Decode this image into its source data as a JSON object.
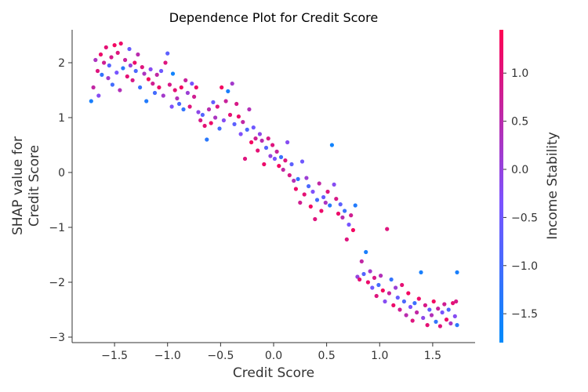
{
  "chart_data": {
    "type": "scatter",
    "title": "Dependence Plot for Credit Score",
    "xlabel": "Credit Score",
    "ylabel_lines": [
      "SHAP value for",
      "Credit Score"
    ],
    "xlim": [
      -1.9,
      1.9
    ],
    "ylim": [
      -3.1,
      2.6
    ],
    "xticks": [
      -1.5,
      -1.0,
      -0.5,
      0.0,
      0.5,
      1.0,
      1.5
    ],
    "xtick_labels": [
      "−1.5",
      "−1.0",
      "−0.5",
      "0.0",
      "0.5",
      "1.0",
      "1.5"
    ],
    "yticks": [
      2,
      1,
      0,
      -1,
      -2,
      -3
    ],
    "ytick_labels": [
      "2",
      "1",
      "0",
      "−1",
      "−2",
      "−3"
    ],
    "grid": false,
    "colorbar": {
      "label": "Income Stability",
      "range": [
        -1.8,
        1.45
      ],
      "ticks": [
        1.0,
        0.5,
        0.0,
        -0.5,
        -1.0,
        -1.5
      ],
      "tick_labels": [
        "1.0",
        "0.5",
        "0.0",
        "−0.5",
        "−1.0",
        "−1.5"
      ],
      "colors": [
        "#008bfb",
        "#7c52ff",
        "#ff0052"
      ]
    },
    "series": [
      {
        "points": [
          [
            -1.72,
            1.3,
            -1.5
          ],
          [
            -1.7,
            1.55,
            0.6
          ],
          [
            -1.68,
            2.05,
            0.3
          ],
          [
            -1.66,
            1.85,
            1.0
          ],
          [
            -1.65,
            1.4,
            -0.2
          ],
          [
            -1.63,
            2.15,
            1.2
          ],
          [
            -1.62,
            1.78,
            -1.2
          ],
          [
            -1.6,
            2.0,
            0.8
          ],
          [
            -1.58,
            2.28,
            1.1
          ],
          [
            -1.56,
            1.72,
            0.2
          ],
          [
            -1.55,
            1.95,
            -0.8
          ],
          [
            -1.53,
            2.1,
            0.9
          ],
          [
            -1.52,
            1.6,
            -1.0
          ],
          [
            -1.5,
            2.32,
            1.3
          ],
          [
            -1.48,
            1.82,
            -0.4
          ],
          [
            -1.47,
            2.18,
            1.0
          ],
          [
            -1.45,
            1.5,
            0.4
          ],
          [
            -1.44,
            2.35,
            1.2
          ],
          [
            -1.42,
            1.9,
            -1.3
          ],
          [
            -1.4,
            2.05,
            0.7
          ],
          [
            -1.38,
            1.75,
            1.1
          ],
          [
            -1.36,
            2.25,
            -0.6
          ],
          [
            -1.35,
            1.95,
            0.0
          ],
          [
            -1.33,
            1.68,
            0.9
          ],
          [
            -1.31,
            2.0,
            1.2
          ],
          [
            -1.3,
            1.85,
            -0.9
          ],
          [
            -1.28,
            2.15,
            0.5
          ],
          [
            -1.26,
            1.55,
            -1.1
          ],
          [
            -1.24,
            1.92,
            1.0
          ],
          [
            -1.22,
            1.8,
            0.3
          ],
          [
            -1.2,
            1.3,
            -1.4
          ],
          [
            -1.18,
            1.7,
            1.3
          ],
          [
            -1.16,
            1.88,
            -0.2
          ],
          [
            -1.14,
            1.62,
            0.8
          ],
          [
            -1.12,
            1.45,
            -1.0
          ],
          [
            -1.1,
            1.78,
            0.6
          ],
          [
            -1.08,
            1.55,
            1.2
          ],
          [
            -1.06,
            1.85,
            -0.5
          ],
          [
            -1.04,
            1.4,
            0.2
          ],
          [
            -1.02,
            2.0,
            1.0
          ],
          [
            -1.0,
            2.17,
            -0.7
          ],
          [
            -0.98,
            1.6,
            0.9
          ],
          [
            -0.96,
            1.2,
            -0.3
          ],
          [
            -0.95,
            1.8,
            -1.6
          ],
          [
            -0.93,
            1.5,
            1.1
          ],
          [
            -0.91,
            1.35,
            0.4
          ],
          [
            -0.89,
            1.25,
            -0.9
          ],
          [
            -0.87,
            1.55,
            1.3
          ],
          [
            -0.85,
            1.15,
            -1.2
          ],
          [
            -0.83,
            1.68,
            0.7
          ],
          [
            -0.81,
            1.45,
            0.1
          ],
          [
            -0.79,
            1.2,
            1.0
          ],
          [
            -0.77,
            1.62,
            -0.4
          ],
          [
            -0.75,
            1.38,
            0.8
          ],
          [
            -0.73,
            1.55,
            1.2
          ],
          [
            -0.71,
            1.1,
            -0.1
          ],
          [
            -0.69,
            0.95,
            0.9
          ],
          [
            -0.67,
            1.05,
            -0.8
          ],
          [
            -0.65,
            0.85,
            1.1
          ],
          [
            -0.63,
            0.6,
            -1.3
          ],
          [
            -0.61,
            1.15,
            0.5
          ],
          [
            -0.59,
            0.9,
            1.2
          ],
          [
            -0.57,
            1.28,
            -0.6
          ],
          [
            -0.55,
            1.0,
            0.3
          ],
          [
            -0.53,
            1.2,
            1.0
          ],
          [
            -0.51,
            0.8,
            -1.0
          ],
          [
            -0.49,
            1.55,
            1.3
          ],
          [
            -0.47,
            0.95,
            -0.2
          ],
          [
            -0.45,
            1.3,
            0.7
          ],
          [
            -0.43,
            1.48,
            -1.5
          ],
          [
            -0.41,
            1.05,
            1.1
          ],
          [
            -0.39,
            1.62,
            0.2
          ],
          [
            -0.37,
            0.88,
            -0.7
          ],
          [
            -0.35,
            1.25,
            0.9
          ],
          [
            -0.33,
            1.02,
            1.2
          ],
          [
            -0.31,
            0.7,
            -0.3
          ],
          [
            -0.29,
            0.92,
            0.6
          ],
          [
            -0.27,
            0.25,
            1.0
          ],
          [
            -0.25,
            0.78,
            -0.9
          ],
          [
            -0.23,
            1.15,
            0.4
          ],
          [
            -0.21,
            0.55,
            1.3
          ],
          [
            -0.19,
            0.82,
            -0.5
          ],
          [
            -0.17,
            0.62,
            0.8
          ],
          [
            -0.15,
            0.4,
            1.1
          ],
          [
            -0.13,
            0.7,
            -0.1
          ],
          [
            -0.11,
            0.58,
            0.5
          ],
          [
            -0.09,
            0.15,
            1.2
          ],
          [
            -0.07,
            0.45,
            -0.8
          ],
          [
            -0.05,
            0.62,
            0.9
          ],
          [
            -0.03,
            0.3,
            0.0
          ],
          [
            -0.01,
            0.5,
            1.0
          ],
          [
            0.01,
            0.25,
            -0.4
          ],
          [
            0.03,
            0.38,
            0.7
          ],
          [
            0.05,
            0.12,
            1.3
          ],
          [
            0.07,
            0.28,
            -1.1
          ],
          [
            0.09,
            0.05,
            0.6
          ],
          [
            0.11,
            0.22,
            1.0
          ],
          [
            0.13,
            0.55,
            -0.2
          ],
          [
            0.15,
            -0.05,
            0.9
          ],
          [
            0.17,
            0.15,
            -0.7
          ],
          [
            0.19,
            -0.15,
            0.4
          ],
          [
            0.21,
            -0.3,
            1.2
          ],
          [
            0.23,
            -0.12,
            -1.2
          ],
          [
            0.25,
            -0.55,
            0.8
          ],
          [
            0.27,
            0.2,
            -0.5
          ],
          [
            0.29,
            -0.4,
            1.1
          ],
          [
            0.31,
            -0.1,
            0.1
          ],
          [
            0.33,
            -0.25,
            -0.9
          ],
          [
            0.35,
            -0.62,
            1.3
          ],
          [
            0.37,
            -0.35,
            -0.3
          ],
          [
            0.39,
            -0.85,
            1.0
          ],
          [
            0.41,
            -0.5,
            -1.0
          ],
          [
            0.43,
            -0.2,
            0.6
          ],
          [
            0.45,
            -0.7,
            1.2
          ],
          [
            0.47,
            -0.45,
            -0.6
          ],
          [
            0.49,
            -0.55,
            0.3
          ],
          [
            0.51,
            -0.35,
            1.0
          ],
          [
            0.53,
            -0.6,
            -1.3
          ],
          [
            0.55,
            0.5,
            -1.6
          ],
          [
            0.57,
            -0.22,
            -0.2
          ],
          [
            0.59,
            -0.48,
            0.9
          ],
          [
            0.61,
            -0.75,
            1.2
          ],
          [
            0.63,
            -0.58,
            -0.7
          ],
          [
            0.65,
            -0.82,
            0.5
          ],
          [
            0.67,
            -0.7,
            -1.1
          ],
          [
            0.69,
            -1.22,
            1.0
          ],
          [
            0.71,
            -0.95,
            -0.4
          ],
          [
            0.73,
            -0.78,
            0.8
          ],
          [
            0.75,
            -1.05,
            1.3
          ],
          [
            0.77,
            -0.6,
            -1.4
          ],
          [
            0.79,
            -1.9,
            0.0
          ],
          [
            0.81,
            -1.95,
            1.1
          ],
          [
            0.83,
            -1.62,
            0.6
          ],
          [
            0.85,
            -1.85,
            -0.8
          ],
          [
            0.87,
            -1.45,
            -1.5
          ],
          [
            0.89,
            -2.0,
            1.2
          ],
          [
            0.91,
            -1.8,
            0.2
          ],
          [
            0.93,
            -2.1,
            -0.5
          ],
          [
            0.95,
            -1.92,
            0.9
          ],
          [
            0.97,
            -2.25,
            1.0
          ],
          [
            0.99,
            -2.05,
            -1.0
          ],
          [
            1.01,
            -1.88,
            0.4
          ],
          [
            1.03,
            -2.15,
            1.3
          ],
          [
            1.05,
            -2.35,
            -0.2
          ],
          [
            1.07,
            -1.03,
            1.0
          ],
          [
            1.09,
            -2.2,
            0.7
          ],
          [
            1.11,
            -1.95,
            -1.2
          ],
          [
            1.13,
            -2.42,
            1.2
          ],
          [
            1.15,
            -2.1,
            0.1
          ],
          [
            1.17,
            -2.28,
            -0.6
          ],
          [
            1.19,
            -2.5,
            0.8
          ],
          [
            1.21,
            -2.05,
            1.1
          ],
          [
            1.23,
            -2.35,
            -0.9
          ],
          [
            1.25,
            -2.6,
            0.5
          ],
          [
            1.27,
            -2.2,
            1.3
          ],
          [
            1.29,
            -2.45,
            -0.3
          ],
          [
            1.31,
            -2.7,
            1.0
          ],
          [
            1.33,
            -2.38,
            -1.1
          ],
          [
            1.35,
            -2.55,
            0.6
          ],
          [
            1.37,
            -2.3,
            1.2
          ],
          [
            1.39,
            -1.82,
            -1.5
          ],
          [
            1.41,
            -2.65,
            -0.1
          ],
          [
            1.43,
            -2.42,
            0.9
          ],
          [
            1.45,
            -2.78,
            1.1
          ],
          [
            1.47,
            -2.5,
            -0.7
          ],
          [
            1.49,
            -2.6,
            0.4
          ],
          [
            1.51,
            -2.35,
            1.3
          ],
          [
            1.53,
            -2.72,
            -1.2
          ],
          [
            1.55,
            -2.48,
            0.7
          ],
          [
            1.57,
            -2.8,
            1.0
          ],
          [
            1.59,
            -2.55,
            -0.4
          ],
          [
            1.61,
            -2.4,
            0.8
          ],
          [
            1.63,
            -2.68,
            1.2
          ],
          [
            1.65,
            -2.5,
            -0.9
          ],
          [
            1.67,
            -2.75,
            0.3
          ],
          [
            1.69,
            -2.38,
            1.1
          ],
          [
            1.71,
            -2.62,
            -0.2
          ],
          [
            1.73,
            -1.82,
            -1.5
          ],
          [
            1.73,
            -2.78,
            -1.3
          ],
          [
            1.72,
            -2.35,
            0.9
          ]
        ]
      }
    ]
  }
}
